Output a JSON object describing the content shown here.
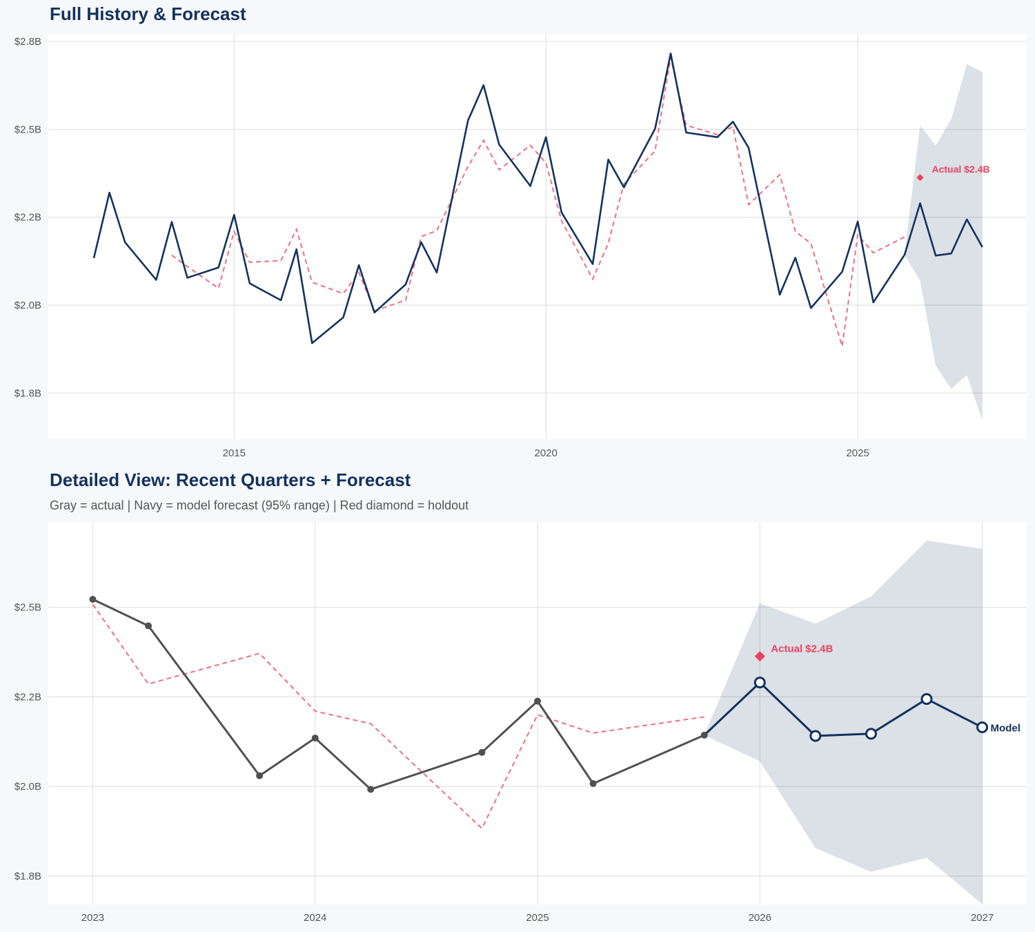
{
  "chart_data": [
    {
      "type": "line",
      "title": "Full History & Forecast",
      "subtitle": "",
      "xlim": [
        2012.02,
        2027.71
      ],
      "ylim": [
        1.619,
        2.77
      ],
      "grid": true,
      "x_ticks": [
        2015,
        2020,
        2025
      ],
      "x_tick_labels": [
        "2015",
        "2020",
        "2025"
      ],
      "y_ticks": [
        1.75,
        2.0,
        2.25,
        2.5,
        2.75
      ],
      "y_tick_labels": [
        "$1.8B",
        "$2.0B",
        "$2.2B",
        "$2.5B",
        "$2.8B"
      ],
      "colors": {
        "actual": "#12325e",
        "fitted": "#ee6f85",
        "forecast": "#12325e",
        "band": "#12325e",
        "holdout": "#e8435f"
      },
      "actual": {
        "x": [
          2012.75,
          2013.0,
          2013.25,
          2013.75,
          2014.0,
          2014.25,
          2014.75,
          2015.0,
          2015.25,
          2015.75,
          2016.0,
          2016.25,
          2016.75,
          2017.0,
          2017.25,
          2017.75,
          2018.0,
          2018.25,
          2018.75,
          2019.0,
          2019.25,
          2019.75,
          2020.0,
          2020.25,
          2020.75,
          2021.0,
          2021.25,
          2021.75,
          2022.0,
          2022.25,
          2022.75,
          2023.0,
          2023.25,
          2023.75,
          2024.0,
          2024.25,
          2024.75,
          2025.0,
          2025.25,
          2025.75
        ],
        "y": [
          2.134,
          2.32,
          2.179,
          2.072,
          2.237,
          2.078,
          2.107,
          2.257,
          2.062,
          2.014,
          2.159,
          1.892,
          1.965,
          2.114,
          1.979,
          2.059,
          2.179,
          2.093,
          2.525,
          2.626,
          2.457,
          2.339,
          2.478,
          2.264,
          2.117,
          2.414,
          2.335,
          2.502,
          2.716,
          2.491,
          2.478,
          2.522,
          2.448,
          2.03,
          2.135,
          1.992,
          2.095,
          2.238,
          2.008,
          2.143
        ]
      },
      "fitted": {
        "x": [
          2014.0,
          2014.25,
          2014.75,
          2015.0,
          2015.25,
          2015.75,
          2016.0,
          2016.25,
          2016.75,
          2017.0,
          2017.25,
          2017.75,
          2018.0,
          2018.25,
          2018.75,
          2019.0,
          2019.25,
          2019.75,
          2020.0,
          2020.25,
          2020.75,
          2021.0,
          2021.25,
          2021.75,
          2022.0,
          2022.25,
          2022.75,
          2023.0,
          2023.25,
          2023.75,
          2024.0,
          2024.25,
          2024.75,
          2025.0,
          2025.25,
          2025.75
        ],
        "y": [
          2.142,
          2.11,
          2.048,
          2.21,
          2.122,
          2.127,
          2.216,
          2.065,
          2.033,
          2.093,
          1.984,
          2.014,
          2.195,
          2.212,
          2.394,
          2.469,
          2.385,
          2.455,
          2.405,
          2.24,
          2.074,
          2.176,
          2.345,
          2.439,
          2.705,
          2.512,
          2.485,
          2.508,
          2.286,
          2.371,
          2.21,
          2.175,
          1.883,
          2.2,
          2.149,
          2.194
        ]
      },
      "forecast": {
        "x": [
          2025.75,
          2026.0,
          2026.25,
          2026.5,
          2026.75,
          2027.0
        ],
        "y": [
          2.143,
          2.29,
          2.141,
          2.147,
          2.244,
          2.165
        ],
        "lower": [
          2.143,
          2.07,
          1.828,
          1.762,
          1.801,
          1.672
        ],
        "upper": [
          2.143,
          2.511,
          2.454,
          2.53,
          2.686,
          2.663
        ]
      },
      "holdout": {
        "x": 2026.0,
        "y": 2.363,
        "label": "Actual $2.4B"
      },
      "end_label": ""
    },
    {
      "type": "line",
      "title": "Detailed View: Recent Quarters + Forecast",
      "subtitle": "Gray = actual  |  Navy = model forecast (95% range)  |  Red diamond = holdout",
      "xlim": [
        2022.8,
        2027.2
      ],
      "ylim": [
        1.671,
        2.736
      ],
      "grid": true,
      "x_ticks": [
        2023,
        2024,
        2025,
        2026,
        2027
      ],
      "x_tick_labels": [
        "2023",
        "2024",
        "2025",
        "2026",
        "2027"
      ],
      "y_ticks": [
        1.75,
        2.0,
        2.25,
        2.5
      ],
      "y_tick_labels": [
        "$1.8B",
        "$2.0B",
        "$2.2B",
        "$2.5B"
      ],
      "colors": {
        "actual": "#505050",
        "fitted": "#ee6f85",
        "forecast": "#12325e",
        "band": "#12325e",
        "holdout": "#e8435f"
      },
      "actual": {
        "x": [
          2023.0,
          2023.25,
          2023.75,
          2024.0,
          2024.25,
          2024.75,
          2025.0,
          2025.25,
          2025.75
        ],
        "y": [
          2.522,
          2.448,
          2.03,
          2.135,
          1.992,
          2.095,
          2.238,
          2.008,
          2.143
        ]
      },
      "fitted": {
        "x": [
          2023.0,
          2023.25,
          2023.75,
          2024.0,
          2024.25,
          2024.75,
          2025.0,
          2025.25,
          2025.75
        ],
        "y": [
          2.508,
          2.286,
          2.371,
          2.21,
          2.175,
          1.883,
          2.2,
          2.149,
          2.194
        ]
      },
      "forecast": {
        "x": [
          2025.75,
          2026.0,
          2026.25,
          2026.5,
          2026.75,
          2027.0
        ],
        "y": [
          2.143,
          2.29,
          2.141,
          2.147,
          2.244,
          2.165
        ],
        "lower": [
          2.143,
          2.07,
          1.828,
          1.762,
          1.801,
          1.672
        ],
        "upper": [
          2.143,
          2.511,
          2.454,
          2.53,
          2.686,
          2.663
        ]
      },
      "holdout": {
        "x": 2026.0,
        "y": 2.363,
        "label": "Actual $2.4B"
      },
      "end_label": "Model"
    }
  ]
}
